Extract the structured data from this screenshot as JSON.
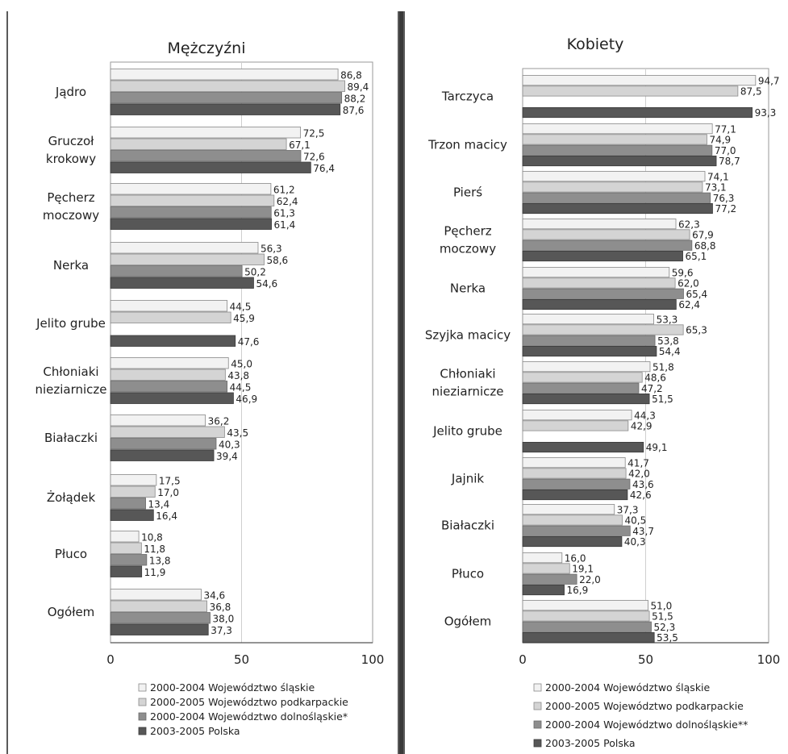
{
  "legend_colors": [
    "#f2f2f2",
    "#d4d4d4",
    "#8e8e8e",
    "#575757"
  ],
  "chart_data": [
    {
      "type": "bar",
      "orientation": "horizontal",
      "title": "Mężczyźni",
      "xlim": [
        0,
        100
      ],
      "x_ticks": [
        "0",
        "50",
        "100"
      ],
      "grid": true,
      "legend_position": "bottom",
      "categories": [
        "Jądro",
        "Gruczoł krokowy",
        "Pęcherz moczowy",
        "Nerka",
        "Jelito grube",
        "Chłoniaki nieziarnicze",
        "Białaczki",
        "Żołądek",
        "Płuco",
        "Ogółem"
      ],
      "series": [
        {
          "name": "2000-2004 Województwo śląskie",
          "values": [
            86.8,
            72.5,
            61.2,
            56.3,
            44.5,
            45.0,
            36.2,
            17.5,
            10.8,
            34.6
          ],
          "labels": [
            "86,8",
            "72,5",
            "61,2",
            "56,3",
            "44,5",
            "45,0",
            "36,2",
            "17,5",
            "10,8",
            "34,6"
          ]
        },
        {
          "name": "2000-2005 Województwo podkarpackie",
          "values": [
            89.4,
            67.1,
            62.4,
            58.6,
            45.9,
            43.8,
            43.5,
            17.0,
            11.8,
            36.8
          ],
          "labels": [
            "89,4",
            "67,1",
            "62,4",
            "58,6",
            "45,9",
            "43,8",
            "43,5",
            "17,0",
            "11,8",
            "36,8"
          ]
        },
        {
          "name": "2000-2004 Województwo dolnośląskie*",
          "values": [
            88.2,
            72.6,
            61.3,
            50.2,
            null,
            44.5,
            40.3,
            13.4,
            13.8,
            38.0
          ],
          "labels": [
            "88,2",
            "72,6",
            "61,3",
            "50,2",
            "",
            "44,5",
            "40,3",
            "13,4",
            "13,8",
            "38,0"
          ]
        },
        {
          "name": "2003-2005 Polska",
          "values": [
            87.6,
            76.4,
            61.4,
            54.6,
            47.6,
            46.9,
            39.4,
            16.4,
            11.9,
            37.3
          ],
          "labels": [
            "87,6",
            "76,4",
            "61,4",
            "54,6",
            "47,6",
            "46,9",
            "39,4",
            "16,4",
            "11,9",
            "37,3"
          ]
        }
      ]
    },
    {
      "type": "bar",
      "orientation": "horizontal",
      "title": "Kobiety",
      "xlim": [
        0,
        100
      ],
      "x_ticks": [
        "0",
        "50",
        "100"
      ],
      "grid": true,
      "legend_position": "bottom",
      "categories": [
        "Tarczyca",
        "Trzon macicy",
        "Pierś",
        "Pęcherz moczowy",
        "Nerka",
        "Szyjka macicy",
        "Chłoniaki nieziarnicze",
        "Jelito grube",
        "Jajnik",
        "Białaczki",
        "Płuco",
        "Ogółem"
      ],
      "series": [
        {
          "name": "2000-2004 Województwo śląskie",
          "values": [
            94.7,
            77.1,
            74.1,
            62.3,
            59.6,
            53.3,
            51.8,
            44.3,
            41.7,
            37.3,
            16.0,
            51.0
          ],
          "labels": [
            "94,7",
            "77,1",
            "74,1",
            "62,3",
            "59,6",
            "53,3",
            "51,8",
            "44,3",
            "41,7",
            "37,3",
            "16,0",
            "51,0"
          ]
        },
        {
          "name": "2000-2005 Województwo podkarpackie",
          "values": [
            87.5,
            74.9,
            73.1,
            67.9,
            62.0,
            65.3,
            48.6,
            42.9,
            42.0,
            40.5,
            19.1,
            51.5
          ],
          "labels": [
            "87,5",
            "74,9",
            "73,1",
            "67,9",
            "62,0",
            "65,3",
            "48,6",
            "42,9",
            "42,0",
            "40,5",
            "19,1",
            "51,5"
          ]
        },
        {
          "name": "2000-2004 Województwo dolnośląskie**",
          "values": [
            null,
            77.0,
            76.3,
            68.8,
            65.4,
            53.8,
            47.2,
            null,
            43.6,
            43.7,
            22.0,
            52.3
          ],
          "labels": [
            "",
            "77,0",
            "76,3",
            "68,8",
            "65,4",
            "53,8",
            "47,2",
            "",
            "43,6",
            "43,7",
            "22,0",
            "52,3"
          ]
        },
        {
          "name": "2003-2005 Polska",
          "values": [
            93.3,
            78.7,
            77.2,
            65.1,
            62.4,
            54.4,
            51.5,
            49.1,
            42.6,
            40.3,
            16.9,
            53.5
          ],
          "labels": [
            "93,3",
            "78,7",
            "77,2",
            "65,1",
            "62,4",
            "54,4",
            "51,5",
            "49,1",
            "42,6",
            "40,3",
            "16,9",
            "53,5"
          ]
        }
      ]
    }
  ]
}
